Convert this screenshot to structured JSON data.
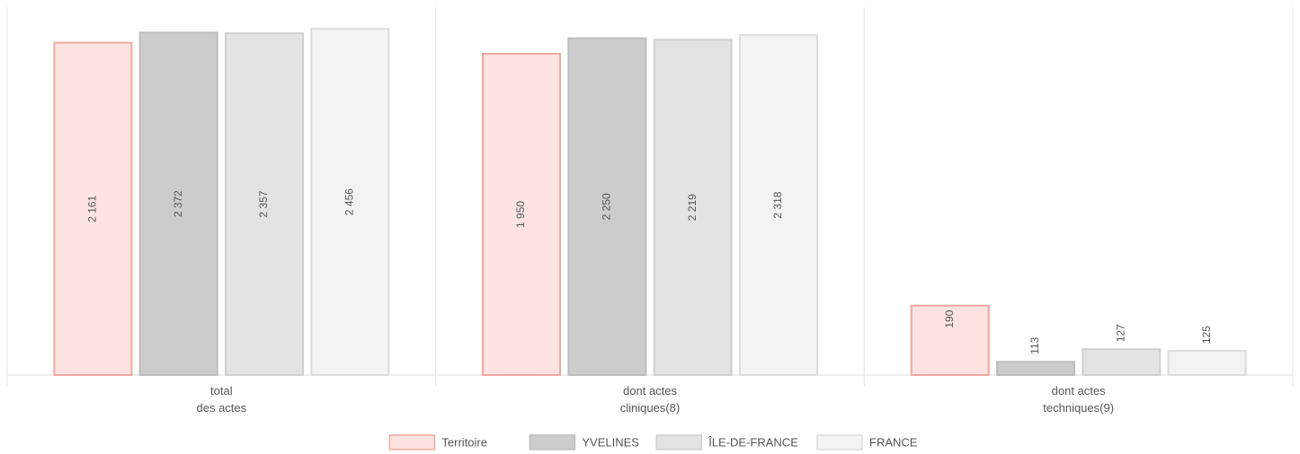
{
  "chart_data": {
    "type": "bar",
    "categories": [
      [
        "total",
        "des actes"
      ],
      [
        "dont actes",
        "cliniques(8)"
      ],
      [
        "dont actes",
        "techniques(9)"
      ]
    ],
    "log": true,
    "ylim": [
      100,
      3000
    ],
    "legend": "bottom",
    "series": [
      {
        "name": "Territoire",
        "color": "#fde4e2",
        "stroke": "#f0a8a0",
        "values": [
          2161,
          1950,
          190
        ],
        "value_labels": [
          "2 161",
          "1 950",
          "190"
        ]
      },
      {
        "name": "YVELINES",
        "color": "#cccccc",
        "stroke": "#bdbdbd",
        "values": [
          2372,
          2250,
          113
        ],
        "value_labels": [
          "2 372",
          "2 250",
          "113"
        ]
      },
      {
        "name": "ÎLE-DE-FRANCE",
        "color": "#e3e3e3",
        "stroke": "#d0d0d0",
        "values": [
          2357,
          2219,
          127
        ],
        "value_labels": [
          "2 357",
          "2 219",
          "127"
        ]
      },
      {
        "name": "FRANCE",
        "color": "#f3f3f3",
        "stroke": "#dcdcdc",
        "values": [
          2456,
          2318,
          125
        ],
        "value_labels": [
          "2 456",
          "2 318",
          "125"
        ]
      }
    ]
  }
}
